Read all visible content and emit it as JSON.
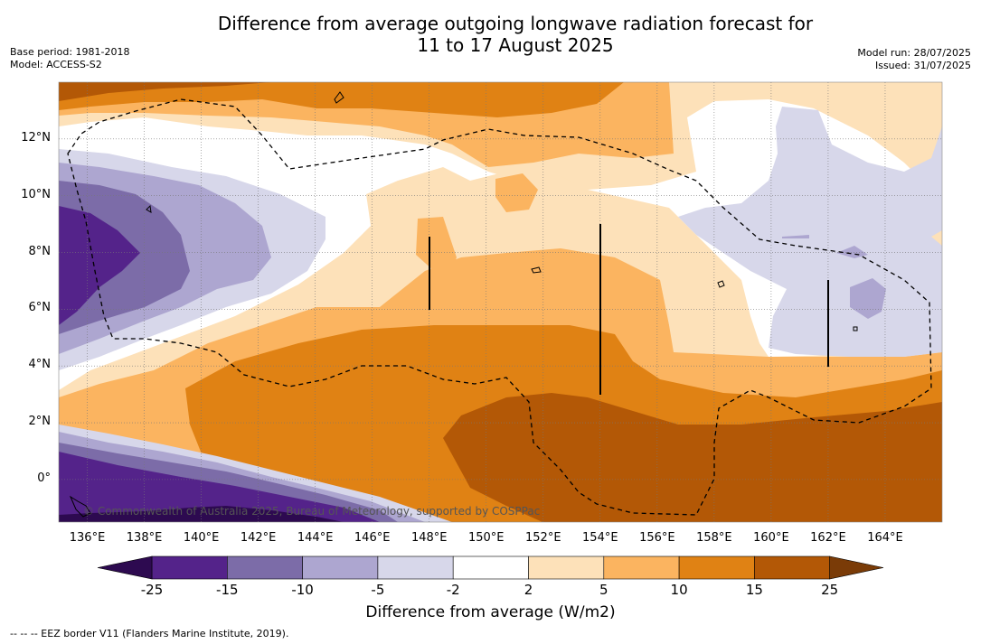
{
  "header": {
    "title_line1": "Difference from average outgoing longwave radiation forecast for",
    "title_line2": "11 to 17 August 2025",
    "base_period": "Base period: 1981-2018",
    "model": "Model: ACCESS-S2",
    "model_run": "Model run: 28/07/2025",
    "issued": "Issued: 31/07/2025"
  },
  "map": {
    "lon_range": [
      135.0,
      166.0
    ],
    "lat_range": [
      -1.5,
      14.0
    ],
    "gridlines": true,
    "lat_ticks": [
      {
        "value": 12,
        "label": "12°N"
      },
      {
        "value": 10,
        "label": "10°N"
      },
      {
        "value": 8,
        "label": "8°N"
      },
      {
        "value": 6,
        "label": "6°N"
      },
      {
        "value": 4,
        "label": "4°N"
      },
      {
        "value": 2,
        "label": "2°N"
      },
      {
        "value": 0,
        "label": "0°"
      }
    ],
    "lon_ticks": [
      {
        "value": 136,
        "label": "136°E"
      },
      {
        "value": 138,
        "label": "138°E"
      },
      {
        "value": 140,
        "label": "140°E"
      },
      {
        "value": 142,
        "label": "142°E"
      },
      {
        "value": 144,
        "label": "144°E"
      },
      {
        "value": 146,
        "label": "146°E"
      },
      {
        "value": 148,
        "label": "148°E"
      },
      {
        "value": 150,
        "label": "150°E"
      },
      {
        "value": 152,
        "label": "152°E"
      },
      {
        "value": 154,
        "label": "154°E"
      },
      {
        "value": 156,
        "label": "156°E"
      },
      {
        "value": 158,
        "label": "158°E"
      },
      {
        "value": 160,
        "label": "160°E"
      },
      {
        "value": 162,
        "label": "162°E"
      },
      {
        "value": 164,
        "label": "164°E"
      }
    ],
    "copyright": "© Commonwealth of Australia 2025, Bureau of Meteorology, supported by COSPPac"
  },
  "colorbar": {
    "title": "Difference from average (W/m2)",
    "labels": [
      "-25",
      "-15",
      "-10",
      "-5",
      "-2",
      "2",
      "5",
      "10",
      "15",
      "25"
    ],
    "colors": {
      "lt_-25": "#2d0a50",
      "-25_-15": "#54238a",
      "-15_-10": "#7c6ca8",
      "-10_-5": "#ada6d0",
      "-5_-2": "#d7d7ea",
      "-2_2": "#ffffff",
      "2_5": "#fde1b9",
      "5_10": "#fbb460",
      "10_15": "#e08214",
      "15_25": "#b35806",
      "gt_25": "#7a3b07"
    }
  },
  "legend": {
    "eez": "--  --  -- EEZ border V11 (Flanders Marine Institute, 2019)."
  }
}
